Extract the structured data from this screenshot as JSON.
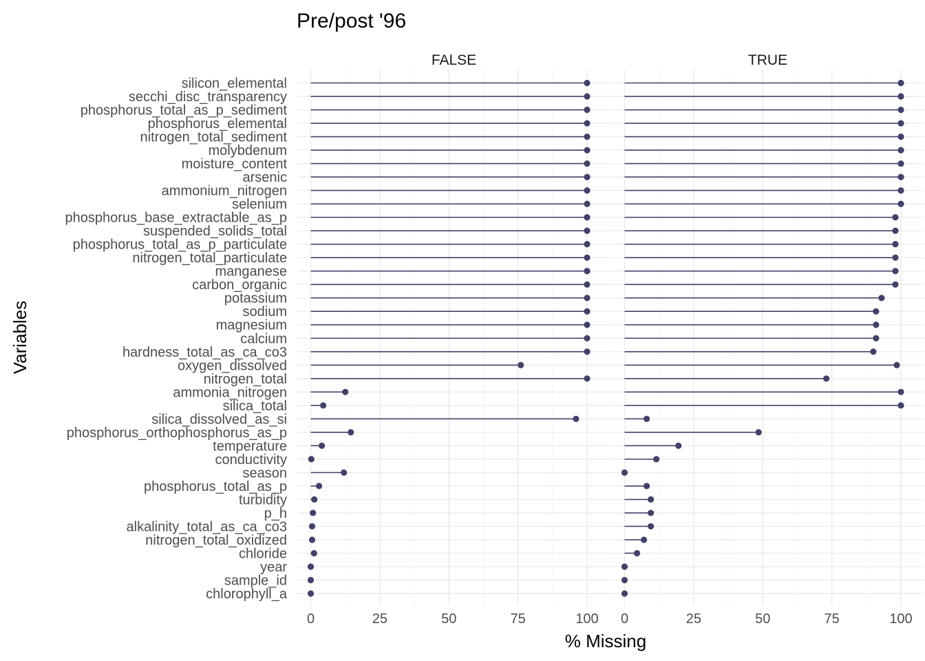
{
  "chart_data": {
    "type": "lollipop",
    "title": "Pre/post '96",
    "xlabel": "% Missing",
    "ylabel": "Variables",
    "xlim": [
      0,
      100
    ],
    "xticks": [
      0,
      25,
      50,
      75,
      100
    ],
    "grid": true,
    "colors": {
      "mark": "#414268"
    },
    "variables": [
      "silicon_elemental",
      "secchi_disc_transparency",
      "phosphorus_total_as_p_sediment",
      "phosphorus_elemental",
      "nitrogen_total_sediment",
      "molybdenum",
      "moisture_content",
      "arsenic",
      "ammonium_nitrogen",
      "selenium",
      "phosphorus_base_extractable_as_p",
      "suspended_solids_total",
      "phosphorus_total_as_p_particulate",
      "nitrogen_total_particulate",
      "manganese",
      "carbon_organic",
      "potassium",
      "sodium",
      "magnesium",
      "calcium",
      "hardness_total_as_ca_co3",
      "oxygen_dissolved",
      "nitrogen_total",
      "ammonia_nitrogen",
      "silica_total",
      "silica_dissolved_as_si",
      "phosphorus_orthophosphorus_as_p",
      "temperature",
      "conductivity",
      "season",
      "phosphorus_total_as_p",
      "turbidity",
      "p_h",
      "alkalinity_total_as_ca_co3",
      "nitrogen_total_oxidized",
      "chloride",
      "year",
      "sample_id",
      "chlorophyll_a"
    ],
    "panels": [
      {
        "label": "FALSE",
        "values": [
          100,
          100,
          100,
          100,
          100,
          100,
          100,
          100,
          100,
          100,
          100,
          100,
          100,
          100,
          100,
          100,
          100,
          100,
          100,
          100,
          100,
          76,
          100,
          12.5,
          4.5,
          96,
          14.5,
          4,
          0.2,
          12,
          3,
          1.3,
          0.8,
          0.5,
          0.5,
          1.2,
          0,
          0,
          0
        ]
      },
      {
        "label": "TRUE",
        "values": [
          100,
          100,
          100,
          100,
          100,
          100,
          100,
          100,
          100,
          100,
          98,
          98,
          98,
          98,
          98,
          98,
          93,
          91,
          91,
          91,
          90,
          98.5,
          73,
          100,
          100,
          8,
          48.5,
          19.5,
          11.5,
          0,
          8,
          9.5,
          9.5,
          9.5,
          7,
          4.5,
          0,
          0,
          0
        ]
      }
    ]
  }
}
